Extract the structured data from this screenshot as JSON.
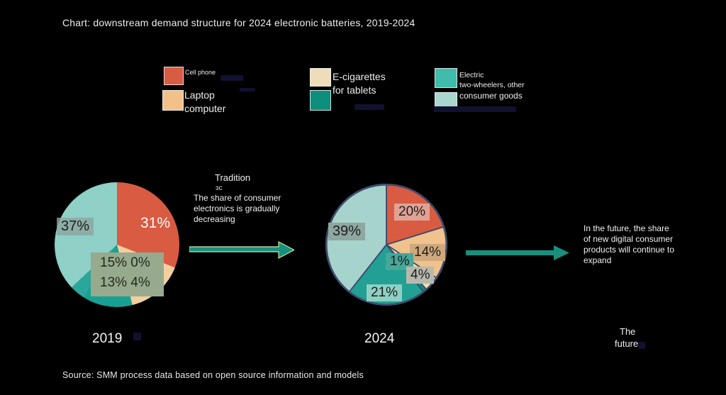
{
  "title": "Chart: downstream demand structure for 2024 electronic batteries, 2019-2024",
  "colors": {
    "text": "#ededed",
    "arrow": "#17917e",
    "arrow_edge": "#c9e79c",
    "center_box_bg": "#98aa8d"
  },
  "legend": {
    "col1": {
      "item1": {
        "swatch": "#d85c44",
        "label": "Cell phone"
      },
      "item2": {
        "swatch": "#f2c189",
        "label_line1": "Laptop",
        "label_line2": "computer"
      }
    },
    "col2": {
      "swatch_top": "#efddba",
      "swatch_bottom": "#0e8f7c",
      "label_line1": "E-cigarettes",
      "label_line2": "for tablets"
    },
    "col3": {
      "item1": {
        "swatch": "#3fbcab",
        "label_line1": "Electric",
        "label_line2": "two-wheelers, other"
      },
      "item2": {
        "swatch": "#a9d6cf",
        "label": "consumer goods"
      }
    }
  },
  "chart_data": [
    {
      "type": "pie",
      "year_label": "2019",
      "categories": [
        "Cell phone",
        "Laptop computer",
        "E-cigarettes",
        "For tablets",
        "Electric two-wheelers, other",
        "Consumer goods"
      ],
      "values": [
        31,
        15,
        0,
        13,
        4,
        37
      ],
      "colors": [
        "#d95b42",
        "#f3cfa0",
        "#efddba",
        "#17a093",
        "#2aa79a",
        "#8fd0c7"
      ],
      "stroke": "",
      "slice_labels": {
        "cell": "31%",
        "consumer": "37%"
      },
      "center_box": {
        "line1": "15% 0%",
        "line2": "13% 4%"
      },
      "label_bg": {
        "consumer": "rgba(141,164,158,0.78)"
      }
    },
    {
      "type": "pie",
      "year_label": "2024",
      "categories": [
        "Cell phone",
        "Laptop computer",
        "E-cigarettes",
        "For tablets",
        "Electric two-wheelers, other",
        "Consumer goods"
      ],
      "values": [
        20,
        14,
        4,
        1,
        21,
        39
      ],
      "colors": [
        "#d95b42",
        "#f0c28d",
        "#f3dcb8",
        "#0f8f7c",
        "#22a093",
        "#a6d4cd"
      ],
      "stroke": "#3d4a6e",
      "slice_labels": {
        "cell": "20%",
        "laptop": "14%",
        "ecig": "4%",
        "tablets": "1%",
        "two_wheelers": "21%",
        "consumer": "39%"
      },
      "label_bg": {
        "cell": "#e0a294",
        "laptop": "#cfa87d",
        "ecig": "#b7b9ae",
        "tablets": "#45a899",
        "two_wheelers": "#8ed0c4",
        "consumer": "#8ea7a1"
      }
    }
  ],
  "annotations": {
    "middle": {
      "heading": "Tradition",
      "glyph": "ɜc",
      "body_line1": "The share of consumer",
      "body_line2": "electronics is gradually",
      "body_line3": "decreasing"
    },
    "right": {
      "line1": "In the future, the share",
      "line2": "of new digital consumer",
      "line3": "products will continue to",
      "line4": "expand"
    },
    "future_label_line1": "The",
    "future_label_line2": "future"
  },
  "source": "Source: SMM process data based on open source information and models"
}
